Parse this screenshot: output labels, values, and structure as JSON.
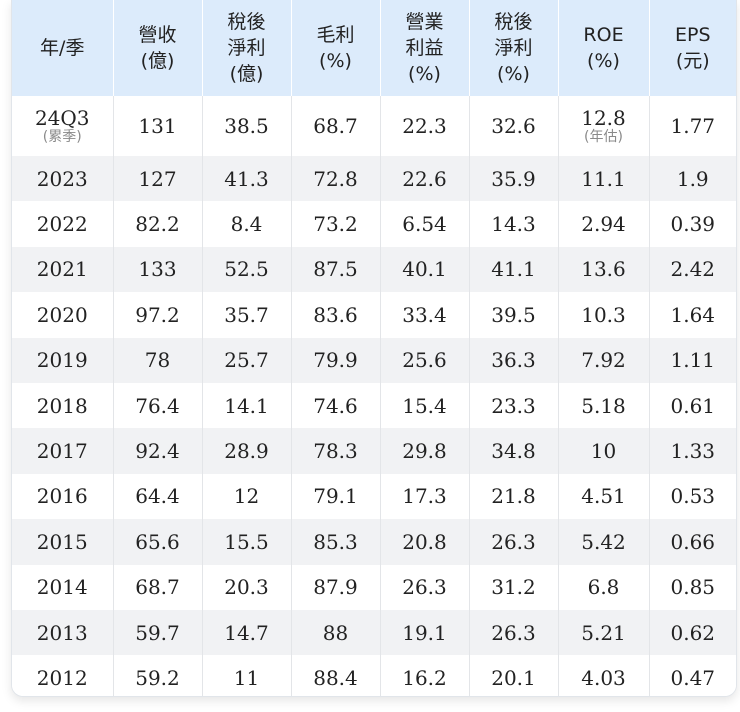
{
  "headers": [
    {
      "line1": "年/季",
      "line2": "",
      "line3": ""
    },
    {
      "line1": "營收",
      "line2": "(億)",
      "line3": ""
    },
    {
      "line1": "稅後",
      "line2": "淨利",
      "line3": "(億)"
    },
    {
      "line1": "毛利",
      "line2": "(%)",
      "line3": ""
    },
    {
      "line1": "營業",
      "line2": "利益",
      "line3": "(%)"
    },
    {
      "line1": "稅後",
      "line2": "淨利",
      "line3": "(%)"
    },
    {
      "line1": "ROE",
      "line2": "(%)",
      "line3": ""
    },
    {
      "line1": "EPS",
      "line2": "(元)",
      "line3": ""
    }
  ],
  "first_row": {
    "period": "24Q3",
    "period_note": "(累季)",
    "revenue": "131",
    "net_income": "38.5",
    "gross_margin": "68.7",
    "operating_margin": "22.3",
    "net_margin": "32.6",
    "roe": "12.8",
    "roe_note": "(年估)",
    "eps": "1.77"
  },
  "rows": [
    [
      "2023",
      "127",
      "41.3",
      "72.8",
      "22.6",
      "35.9",
      "11.1",
      "1.9"
    ],
    [
      "2022",
      "82.2",
      "8.4",
      "73.2",
      "6.54",
      "14.3",
      "2.94",
      "0.39"
    ],
    [
      "2021",
      "133",
      "52.5",
      "87.5",
      "40.1",
      "41.1",
      "13.6",
      "2.42"
    ],
    [
      "2020",
      "97.2",
      "35.7",
      "83.6",
      "33.4",
      "39.5",
      "10.3",
      "1.64"
    ],
    [
      "2019",
      "78",
      "25.7",
      "79.9",
      "25.6",
      "36.3",
      "7.92",
      "1.11"
    ],
    [
      "2018",
      "76.4",
      "14.1",
      "74.6",
      "15.4",
      "23.3",
      "5.18",
      "0.61"
    ],
    [
      "2017",
      "92.4",
      "28.9",
      "78.3",
      "29.8",
      "34.8",
      "10",
      "1.33"
    ],
    [
      "2016",
      "64.4",
      "12",
      "79.1",
      "17.3",
      "21.8",
      "4.51",
      "0.53"
    ],
    [
      "2015",
      "65.6",
      "15.5",
      "85.3",
      "20.8",
      "26.3",
      "5.42",
      "0.66"
    ],
    [
      "2014",
      "68.7",
      "20.3",
      "87.9",
      "26.3",
      "31.2",
      "6.8",
      "0.85"
    ],
    [
      "2013",
      "59.7",
      "14.7",
      "88",
      "19.1",
      "26.3",
      "5.21",
      "0.62"
    ],
    [
      "2012",
      "59.2",
      "11",
      "88.4",
      "16.2",
      "20.1",
      "4.03",
      "0.47"
    ]
  ],
  "colors": {
    "header_bg": "#dcebfb",
    "stripe_bg": "#f1f2f4",
    "note_text": "#8a8a8a"
  }
}
